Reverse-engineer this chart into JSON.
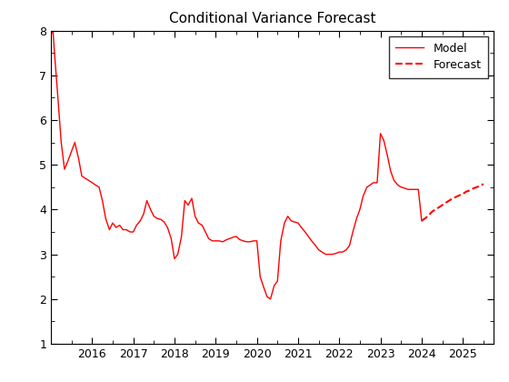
{
  "title": "Conditional Variance Forecast",
  "model_x": [
    2015.0,
    2015.02,
    2015.05,
    2015.08,
    2015.12,
    2015.17,
    2015.25,
    2015.33,
    2015.42,
    2015.5,
    2015.58,
    2015.67,
    2015.75,
    2015.83,
    2015.92,
    2016.0,
    2016.08,
    2016.17,
    2016.25,
    2016.33,
    2016.42,
    2016.5,
    2016.58,
    2016.67,
    2016.75,
    2016.83,
    2016.92,
    2017.0,
    2017.08,
    2017.17,
    2017.25,
    2017.33,
    2017.42,
    2017.5,
    2017.58,
    2017.67,
    2017.75,
    2017.83,
    2017.92,
    2018.0,
    2018.08,
    2018.17,
    2018.25,
    2018.33,
    2018.42,
    2018.5,
    2018.58,
    2018.67,
    2018.75,
    2018.83,
    2018.92,
    2019.0,
    2019.08,
    2019.17,
    2019.25,
    2019.33,
    2019.42,
    2019.5,
    2019.58,
    2019.67,
    2019.75,
    2019.83,
    2019.92,
    2020.0,
    2020.08,
    2020.17,
    2020.25,
    2020.33,
    2020.42,
    2020.5,
    2020.58,
    2020.67,
    2020.75,
    2020.83,
    2020.92,
    2021.0,
    2021.08,
    2021.17,
    2021.25,
    2021.33,
    2021.42,
    2021.5,
    2021.58,
    2021.67,
    2021.75,
    2021.83,
    2021.92,
    2022.0,
    2022.08,
    2022.17,
    2022.25,
    2022.33,
    2022.42,
    2022.5,
    2022.58,
    2022.67,
    2022.75,
    2022.83,
    2022.92,
    2023.0,
    2023.08,
    2023.17,
    2023.25,
    2023.33,
    2023.42,
    2023.5,
    2023.58,
    2023.67,
    2023.75,
    2023.83,
    2023.92,
    2024.0
  ],
  "model_y": [
    7.9,
    7.95,
    8.0,
    7.6,
    7.1,
    6.5,
    5.5,
    4.9,
    5.1,
    5.3,
    5.5,
    5.15,
    4.75,
    4.7,
    4.65,
    4.6,
    4.55,
    4.5,
    4.2,
    3.8,
    3.55,
    3.7,
    3.6,
    3.65,
    3.55,
    3.55,
    3.5,
    3.5,
    3.65,
    3.75,
    3.9,
    4.2,
    4.0,
    3.85,
    3.8,
    3.78,
    3.72,
    3.6,
    3.35,
    2.9,
    3.0,
    3.4,
    4.2,
    4.1,
    4.25,
    3.85,
    3.7,
    3.65,
    3.5,
    3.35,
    3.3,
    3.3,
    3.3,
    3.28,
    3.32,
    3.35,
    3.38,
    3.4,
    3.33,
    3.3,
    3.28,
    3.28,
    3.3,
    3.3,
    2.5,
    2.25,
    2.05,
    2.0,
    2.3,
    2.4,
    3.3,
    3.7,
    3.85,
    3.75,
    3.72,
    3.7,
    3.6,
    3.5,
    3.4,
    3.3,
    3.2,
    3.1,
    3.05,
    3.0,
    3.0,
    3.0,
    3.02,
    3.05,
    3.05,
    3.1,
    3.2,
    3.5,
    3.8,
    4.0,
    4.3,
    4.5,
    4.55,
    4.6,
    4.6,
    5.7,
    5.55,
    5.2,
    4.85,
    4.65,
    4.55,
    4.5,
    4.48,
    4.45,
    4.45,
    4.45,
    4.45,
    3.75
  ],
  "forecast_x": [
    2024.0,
    2024.08,
    2024.17,
    2024.25,
    2024.33,
    2024.42,
    2024.5,
    2024.58,
    2024.67,
    2024.75,
    2024.83,
    2024.92,
    2025.0,
    2025.08,
    2025.17,
    2025.25,
    2025.33,
    2025.42,
    2025.5
  ],
  "forecast_y": [
    3.75,
    3.8,
    3.87,
    3.95,
    4.0,
    4.05,
    4.1,
    4.15,
    4.2,
    4.25,
    4.28,
    4.32,
    4.35,
    4.4,
    4.43,
    4.47,
    4.5,
    4.53,
    4.57
  ],
  "model_color": "#FF0000",
  "forecast_color": "#FF0000",
  "model_linestyle": "-",
  "forecast_linestyle": "--",
  "model_linewidth": 1.0,
  "forecast_linewidth": 1.5,
  "xlim": [
    2015.0,
    2025.75
  ],
  "ylim": [
    1.0,
    8.0
  ],
  "xticks": [
    2016,
    2017,
    2018,
    2019,
    2020,
    2021,
    2022,
    2023,
    2024,
    2025
  ],
  "yticks": [
    1,
    2,
    3,
    4,
    5,
    6,
    7,
    8
  ],
  "legend_labels": [
    "Model",
    "Forecast"
  ],
  "background_color": "#ffffff",
  "title_fontsize": 11,
  "tick_fontsize": 9,
  "legend_fontsize": 9
}
